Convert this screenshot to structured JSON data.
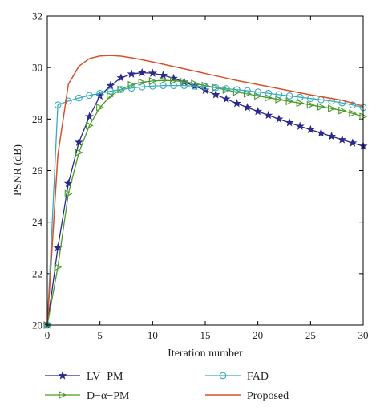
{
  "chart_data": {
    "type": "line",
    "xlabel": "Iteration number",
    "ylabel": "PSNR (dB)",
    "xlim": [
      0,
      30
    ],
    "ylim": [
      20,
      32
    ],
    "xticks": [
      0,
      5,
      10,
      15,
      20,
      25,
      30
    ],
    "yticks": [
      20,
      22,
      24,
      26,
      28,
      30,
      32
    ],
    "grid": false,
    "legend_position": "bottom",
    "series": [
      {
        "name": "LV−PM",
        "color": "#2b2a8c",
        "marker": "star",
        "x": [
          0,
          1,
          2,
          3,
          4,
          5,
          6,
          7,
          8,
          9,
          10,
          11,
          12,
          13,
          14,
          15,
          16,
          17,
          18,
          19,
          20,
          21,
          22,
          23,
          24,
          25,
          26,
          27,
          28,
          29,
          30
        ],
        "y": [
          20.0,
          23.0,
          25.5,
          27.1,
          28.1,
          28.9,
          29.3,
          29.6,
          29.75,
          29.8,
          29.78,
          29.7,
          29.58,
          29.44,
          29.28,
          29.12,
          28.95,
          28.78,
          28.61,
          28.45,
          28.3,
          28.15,
          28.0,
          27.86,
          27.72,
          27.59,
          27.46,
          27.33,
          27.2,
          27.07,
          26.95
        ]
      },
      {
        "name": "D−α−PM",
        "color": "#4a9a2a",
        "marker": "triangle-right",
        "x": [
          0,
          1,
          2,
          3,
          4,
          5,
          6,
          7,
          8,
          9,
          10,
          11,
          12,
          13,
          14,
          15,
          16,
          17,
          18,
          19,
          20,
          21,
          22,
          23,
          24,
          25,
          26,
          27,
          28,
          29,
          30
        ],
        "y": [
          20.0,
          22.25,
          25.1,
          26.7,
          27.75,
          28.45,
          28.9,
          29.15,
          29.33,
          29.43,
          29.48,
          29.5,
          29.49,
          29.45,
          29.38,
          29.3,
          29.22,
          29.13,
          29.05,
          28.98,
          28.9,
          28.83,
          28.76,
          28.69,
          28.62,
          28.55,
          28.48,
          28.41,
          28.33,
          28.22,
          28.1
        ]
      },
      {
        "name": "FAD",
        "color": "#3aacb8",
        "marker": "circle",
        "x": [
          0,
          1,
          2,
          3,
          4,
          5,
          6,
          7,
          8,
          9,
          10,
          11,
          12,
          13,
          14,
          15,
          16,
          17,
          18,
          19,
          20,
          21,
          22,
          23,
          24,
          25,
          26,
          27,
          28,
          29,
          30
        ],
        "y": [
          20.0,
          28.55,
          28.7,
          28.82,
          28.92,
          29.0,
          29.08,
          29.15,
          29.2,
          29.25,
          29.28,
          29.3,
          29.3,
          29.3,
          29.28,
          29.26,
          29.22,
          29.18,
          29.14,
          29.1,
          29.05,
          29.0,
          28.95,
          28.9,
          28.85,
          28.8,
          28.75,
          28.7,
          28.63,
          28.55,
          28.45
        ]
      },
      {
        "name": "Proposed",
        "color": "#d9512c",
        "marker": "none",
        "x": [
          0,
          1,
          2,
          3,
          4,
          5,
          6,
          7,
          8,
          9,
          10,
          11,
          12,
          13,
          14,
          15,
          16,
          17,
          18,
          19,
          20,
          21,
          22,
          23,
          24,
          25,
          26,
          27,
          28,
          29,
          30
        ],
        "y": [
          20.0,
          26.6,
          29.35,
          30.05,
          30.35,
          30.45,
          30.47,
          30.44,
          30.38,
          30.3,
          30.22,
          30.13,
          30.04,
          29.95,
          29.86,
          29.77,
          29.68,
          29.59,
          29.5,
          29.42,
          29.34,
          29.26,
          29.18,
          29.1,
          29.02,
          28.94,
          28.87,
          28.8,
          28.73,
          28.62,
          28.5
        ]
      }
    ]
  }
}
